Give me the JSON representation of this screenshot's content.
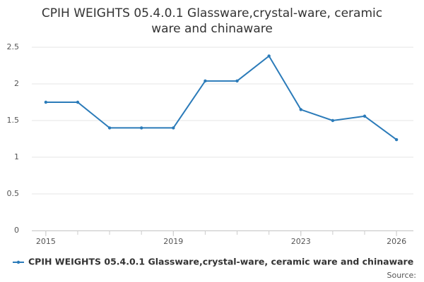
{
  "chart_data": {
    "type": "line",
    "title": "CPIH WEIGHTS 05.4.0.1 Glassware,crystal-ware, ceramic ware and chinaware",
    "x": [
      2015,
      2016,
      2017,
      2018,
      2019,
      2020,
      2021,
      2022,
      2023,
      2024,
      2025,
      2026
    ],
    "series": [
      {
        "name": "CPIH WEIGHTS 05.4.0.1 Glassware,crystal-ware, ceramic ware and chinaware",
        "color": "#2b7bb9",
        "values": [
          1.75,
          1.75,
          1.4,
          1.4,
          1.4,
          2.04,
          2.04,
          2.38,
          1.65,
          1.5,
          1.56,
          1.24
        ]
      }
    ],
    "xlim": [
      2014.56,
      2026.53
    ],
    "xticks": [
      2015,
      2019,
      2023,
      2026
    ],
    "ylim": [
      0,
      2.5
    ],
    "yticks": [
      0,
      0.5,
      1,
      1.5,
      2,
      2.5
    ],
    "grid": true,
    "source": "Source:"
  }
}
